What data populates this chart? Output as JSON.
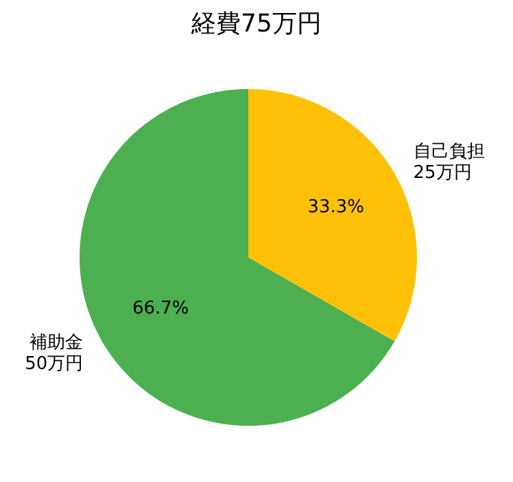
{
  "chart_data": {
    "type": "pie",
    "title": "経費75万円",
    "categories": [
      "自己負担\n25万円",
      "補助金\n50万円"
    ],
    "values": [
      33.3,
      66.7
    ],
    "colors": [
      "#ffc107",
      "#4caf50"
    ],
    "value_labels": [
      "33.3%",
      "66.7%"
    ]
  }
}
